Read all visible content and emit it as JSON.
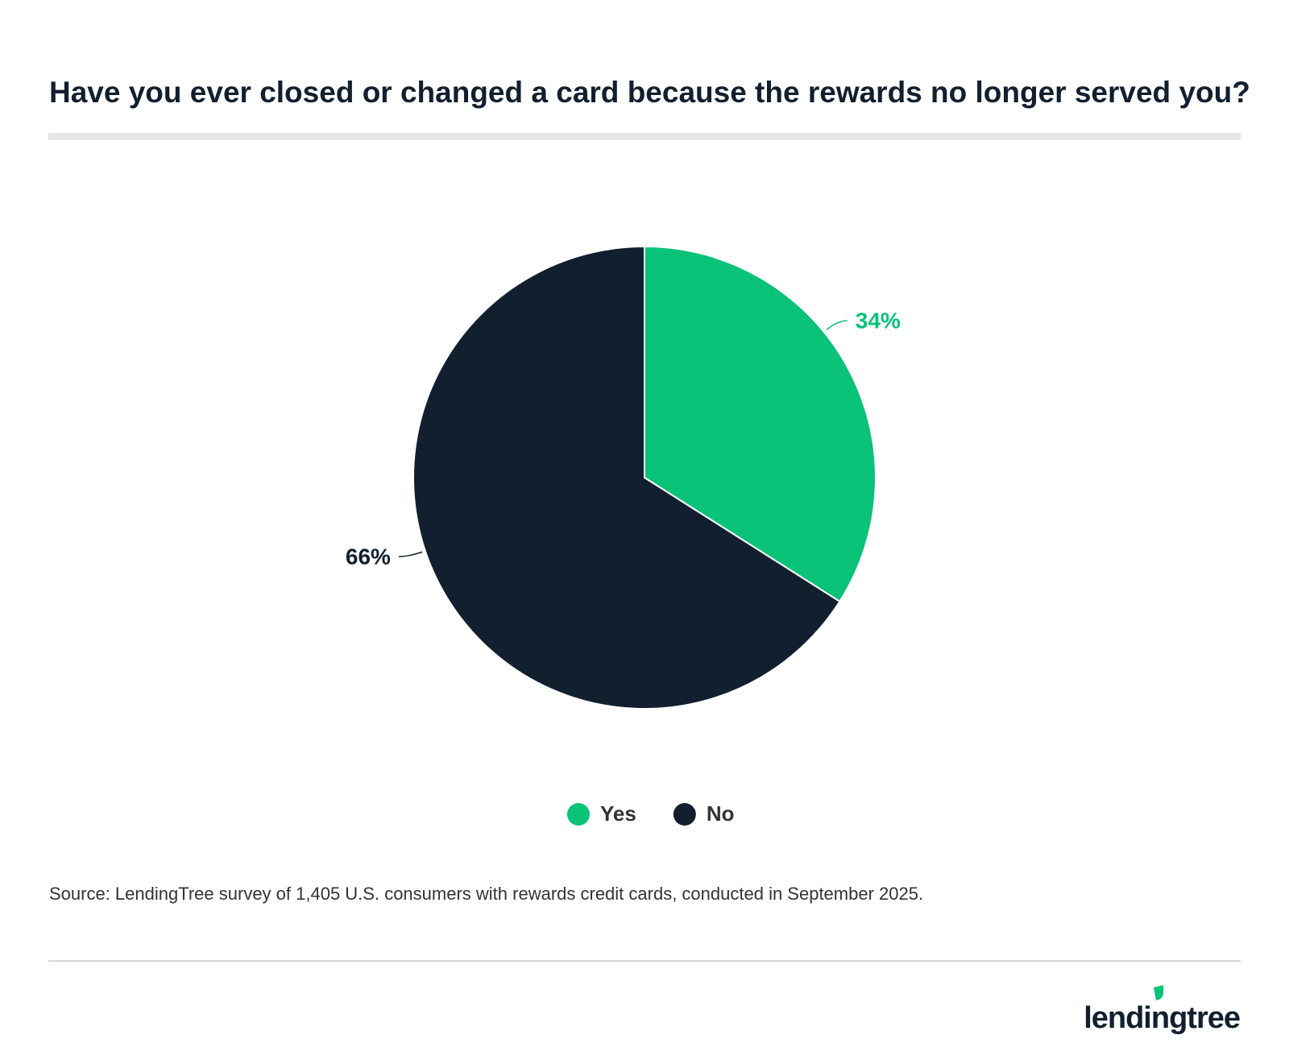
{
  "chart_data": {
    "type": "pie",
    "title": "Have you ever closed or changed a card because the rewards no longer served you?",
    "categories": [
      "Yes",
      "No"
    ],
    "values": [
      34,
      66
    ],
    "value_labels": [
      "34%",
      "66%"
    ],
    "colors": [
      "#0ac278",
      "#121f2f"
    ],
    "legend": "bottom",
    "source": "Source: LendingTree survey of 1,405 U.S. consumers with rewards credit cards, conducted in September 2025.",
    "brand": "lendingtree"
  }
}
